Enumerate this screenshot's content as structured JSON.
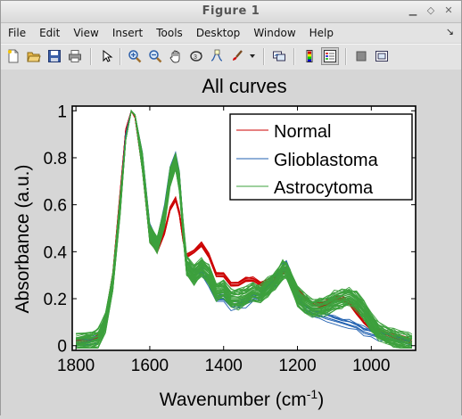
{
  "window": {
    "title": "Figure 1"
  },
  "menu": {
    "items": [
      "File",
      "Edit",
      "View",
      "Insert",
      "Tools",
      "Desktop",
      "Window",
      "Help"
    ],
    "dock_glyph": "↘"
  },
  "toolbar": {
    "icons": [
      "new-figure-icon",
      "open-file-icon",
      "save-icon",
      "print-icon",
      "pointer-icon",
      "zoom-in-icon",
      "zoom-out-icon",
      "pan-hand-icon",
      "rotate-3d-icon",
      "data-cursor-icon",
      "brush-icon",
      "brush-dropdown-icon",
      "link-plot-icon",
      "colorbar-icon",
      "legend-icon",
      "hide-plot-tools-icon",
      "show-plot-tools-icon"
    ]
  },
  "chart_data": {
    "type": "line",
    "title": "All curves",
    "xlabel": "Wavenumber (cm",
    "xlabel_sup": "-1",
    "xlabel_end": ")",
    "ylabel": "Absorbance (a.u.)",
    "xlim": [
      1810,
      880
    ],
    "ylim": [
      -0.02,
      1.02
    ],
    "x_reversed": true,
    "xticks": [
      1800,
      1600,
      1400,
      1200,
      1000
    ],
    "yticks": [
      0,
      0.2,
      0.4,
      0.6,
      0.8,
      1
    ],
    "ytick_labels": [
      "0",
      "0.2",
      "0.4",
      "0.6",
      "0.8",
      "1"
    ],
    "legend": {
      "position": "top-right",
      "entries": [
        "Normal",
        "Glioblastoma",
        "Astrocytoma"
      ]
    },
    "series": [
      {
        "name": "Normal",
        "color": "#cc0000",
        "x": [
          1800,
          1760,
          1740,
          1720,
          1700,
          1680,
          1665,
          1650,
          1640,
          1620,
          1600,
          1580,
          1560,
          1545,
          1530,
          1520,
          1510,
          1500,
          1480,
          1460,
          1440,
          1420,
          1400,
          1380,
          1360,
          1340,
          1320,
          1300,
          1280,
          1260,
          1240,
          1230,
          1220,
          1200,
          1180,
          1160,
          1140,
          1120,
          1100,
          1080,
          1060,
          1040,
          1020,
          1000,
          980,
          960,
          940,
          920,
          900,
          890
        ],
        "y": [
          0.01,
          0.02,
          0.04,
          0.12,
          0.3,
          0.65,
          0.92,
          1.0,
          0.97,
          0.75,
          0.45,
          0.4,
          0.48,
          0.58,
          0.62,
          0.56,
          0.45,
          0.38,
          0.4,
          0.43,
          0.38,
          0.3,
          0.3,
          0.26,
          0.26,
          0.28,
          0.28,
          0.26,
          0.27,
          0.28,
          0.31,
          0.32,
          0.3,
          0.24,
          0.2,
          0.18,
          0.17,
          0.18,
          0.2,
          0.2,
          0.18,
          0.14,
          0.1,
          0.07,
          0.06,
          0.05,
          0.04,
          0.03,
          0.02,
          0.01
        ]
      },
      {
        "name": "Glioblastoma",
        "color": "#2060b0",
        "x": [
          1800,
          1760,
          1740,
          1720,
          1700,
          1680,
          1665,
          1650,
          1640,
          1620,
          1600,
          1580,
          1560,
          1545,
          1530,
          1520,
          1510,
          1500,
          1480,
          1460,
          1440,
          1420,
          1400,
          1380,
          1360,
          1340,
          1320,
          1300,
          1280,
          1260,
          1240,
          1230,
          1220,
          1200,
          1180,
          1160,
          1140,
          1120,
          1100,
          1080,
          1060,
          1040,
          1020,
          1000,
          980,
          960,
          940,
          920,
          900,
          890
        ],
        "y": [
          0.01,
          0.02,
          0.03,
          0.1,
          0.28,
          0.62,
          0.9,
          1.0,
          0.98,
          0.8,
          0.5,
          0.44,
          0.58,
          0.74,
          0.8,
          0.72,
          0.52,
          0.34,
          0.3,
          0.32,
          0.27,
          0.2,
          0.2,
          0.17,
          0.17,
          0.18,
          0.2,
          0.21,
          0.24,
          0.27,
          0.33,
          0.34,
          0.3,
          0.21,
          0.16,
          0.14,
          0.13,
          0.12,
          0.11,
          0.1,
          0.09,
          0.08,
          0.06,
          0.05,
          0.04,
          0.04,
          0.03,
          0.02,
          0.01,
          0.01
        ]
      },
      {
        "name": "Astrocytoma",
        "color": "#3da03d",
        "x": [
          1800,
          1760,
          1740,
          1720,
          1700,
          1680,
          1665,
          1650,
          1640,
          1620,
          1600,
          1580,
          1560,
          1545,
          1530,
          1520,
          1510,
          1500,
          1480,
          1460,
          1440,
          1420,
          1400,
          1380,
          1360,
          1340,
          1320,
          1300,
          1280,
          1260,
          1240,
          1230,
          1220,
          1200,
          1180,
          1160,
          1140,
          1120,
          1100,
          1080,
          1060,
          1040,
          1020,
          1000,
          980,
          960,
          940,
          920,
          900,
          890
        ],
        "y": [
          0.01,
          0.02,
          0.03,
          0.1,
          0.27,
          0.6,
          0.88,
          1.0,
          0.98,
          0.78,
          0.48,
          0.43,
          0.55,
          0.72,
          0.78,
          0.7,
          0.5,
          0.34,
          0.3,
          0.33,
          0.3,
          0.23,
          0.24,
          0.2,
          0.2,
          0.21,
          0.23,
          0.22,
          0.25,
          0.28,
          0.32,
          0.32,
          0.29,
          0.21,
          0.18,
          0.16,
          0.16,
          0.17,
          0.19,
          0.2,
          0.21,
          0.19,
          0.15,
          0.1,
          0.06,
          0.04,
          0.03,
          0.02,
          0.01,
          0.01
        ]
      }
    ]
  }
}
